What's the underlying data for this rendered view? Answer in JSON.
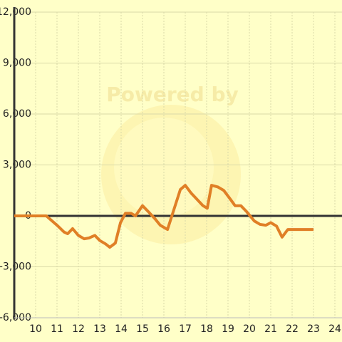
{
  "chart_data": {
    "type": "line",
    "watermark": "Powered by",
    "xlim": [
      9,
      24
    ],
    "xticks": [
      10,
      11,
      12,
      13,
      14,
      15,
      16,
      17,
      18,
      19,
      20,
      21,
      22,
      23,
      24
    ],
    "ylim": [
      -6000,
      12000
    ],
    "yticks": [
      {
        "value": -6000,
        "label": "-6,000"
      },
      {
        "value": -3000,
        "label": "-3,000"
      },
      0,
      {
        "value": 3000,
        "label": "3,000"
      },
      {
        "value": 6000,
        "label": "6,000"
      },
      {
        "value": 9000,
        "label": "9,000"
      },
      {
        "value": 12000,
        "label": "12,000"
      }
    ],
    "grid": true,
    "series": [
      {
        "color": "#e07f26",
        "x": [
          9,
          10.5,
          11,
          11.33,
          11.5,
          11.73,
          12,
          12.27,
          12.5,
          12.77,
          13,
          13.27,
          13.47,
          13.73,
          13.97,
          14.2,
          14.47,
          14.67,
          15,
          15.27,
          15.57,
          15.83,
          16.17,
          16.77,
          17,
          17.27,
          17.53,
          17.83,
          18.03,
          18.23,
          18.53,
          18.8,
          19.07,
          19.33,
          19.6,
          19.87,
          20.23,
          20.5,
          20.77,
          21,
          21.27,
          21.53,
          21.8,
          22.07,
          23
        ],
        "values": [
          0,
          0,
          -550,
          -950,
          -1050,
          -750,
          -1150,
          -1350,
          -1300,
          -1150,
          -1450,
          -1650,
          -1850,
          -1600,
          -400,
          150,
          150,
          0,
          600,
          250,
          -150,
          -550,
          -800,
          1550,
          1800,
          1350,
          1000,
          600,
          450,
          1800,
          1700,
          1500,
          1050,
          600,
          600,
          250,
          -300,
          -500,
          -550,
          -400,
          -600,
          -1250,
          -800,
          -800,
          -800
        ]
      }
    ]
  }
}
